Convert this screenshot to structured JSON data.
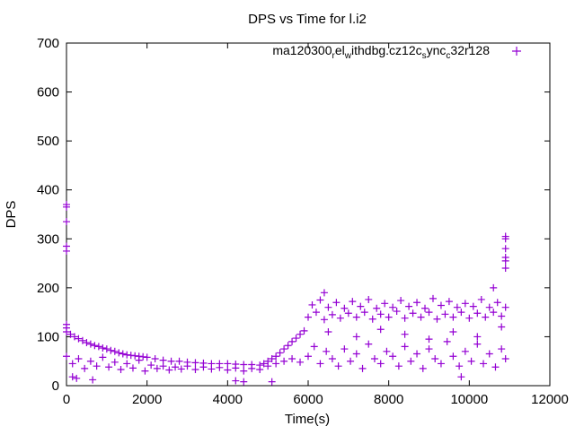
{
  "chart_data": {
    "type": "scatter",
    "title": "DPS vs Time for l.i2",
    "xlabel": "Time(s)",
    "ylabel": "DPS",
    "xlim": [
      0,
      12000
    ],
    "ylim": [
      0,
      700
    ],
    "xticks": [
      "0",
      "2000",
      "4000",
      "6000",
      "8000",
      "10000",
      "12000"
    ],
    "yticks": [
      "0",
      "100",
      "200",
      "300",
      "400",
      "500",
      "600",
      "700"
    ],
    "xtick_values": [
      0,
      2000,
      4000,
      6000,
      8000,
      10000,
      12000
    ],
    "ytick_values": [
      0,
      100,
      200,
      300,
      400,
      500,
      600,
      700
    ],
    "grid": false,
    "legend_position": "top-right",
    "series": [
      {
        "name": "ma120300_rel_withdbg.cz12c_sync_c32r128",
        "legend_parts": [
          "ma120300",
          "r",
          "el",
          "w",
          "ithdbg.cz12c",
          "s",
          "ync",
          "c",
          "32r128"
        ],
        "color": "#9400d3",
        "marker": "plus",
        "points": [
          [
            0,
            370
          ],
          [
            0,
            365
          ],
          [
            0,
            335
          ],
          [
            0,
            285
          ],
          [
            0,
            275
          ],
          [
            0,
            125
          ],
          [
            0,
            118
          ],
          [
            0,
            110
          ],
          [
            100,
            105
          ],
          [
            200,
            100
          ],
          [
            300,
            96
          ],
          [
            400,
            92
          ],
          [
            500,
            88
          ],
          [
            600,
            85
          ],
          [
            700,
            82
          ],
          [
            800,
            80
          ],
          [
            900,
            77
          ],
          [
            1000,
            75
          ],
          [
            1100,
            72
          ],
          [
            1200,
            70
          ],
          [
            1300,
            67
          ],
          [
            1400,
            65
          ],
          [
            1500,
            63
          ],
          [
            1600,
            62
          ],
          [
            1700,
            61
          ],
          [
            1800,
            60
          ],
          [
            1900,
            59
          ],
          [
            2000,
            58
          ],
          [
            2200,
            55
          ],
          [
            2400,
            52
          ],
          [
            2600,
            50
          ],
          [
            2800,
            50
          ],
          [
            3000,
            48
          ],
          [
            3200,
            47
          ],
          [
            3400,
            46
          ],
          [
            3600,
            45
          ],
          [
            3800,
            45
          ],
          [
            4000,
            45
          ],
          [
            4200,
            44
          ],
          [
            4400,
            43
          ],
          [
            4600,
            43
          ],
          [
            4800,
            42
          ],
          [
            4900,
            45
          ],
          [
            5000,
            50
          ],
          [
            5100,
            55
          ],
          [
            5200,
            60
          ],
          [
            5300,
            67
          ],
          [
            5400,
            75
          ],
          [
            5500,
            82
          ],
          [
            5600,
            90
          ],
          [
            5700,
            97
          ],
          [
            5800,
            105
          ],
          [
            5900,
            112
          ],
          [
            0,
            60
          ],
          [
            150,
            45
          ],
          [
            300,
            55
          ],
          [
            450,
            35
          ],
          [
            600,
            50
          ],
          [
            750,
            40
          ],
          [
            900,
            58
          ],
          [
            1050,
            38
          ],
          [
            1200,
            48
          ],
          [
            1350,
            33
          ],
          [
            1500,
            45
          ],
          [
            1650,
            36
          ],
          [
            1800,
            52
          ],
          [
            1950,
            30
          ],
          [
            2100,
            42
          ],
          [
            2250,
            35
          ],
          [
            2400,
            40
          ],
          [
            2550,
            32
          ],
          [
            2700,
            38
          ],
          [
            2850,
            34
          ],
          [
            3000,
            40
          ],
          [
            3200,
            33
          ],
          [
            3400,
            38
          ],
          [
            3600,
            34
          ],
          [
            3800,
            37
          ],
          [
            4000,
            32
          ],
          [
            4200,
            36
          ],
          [
            4400,
            30
          ],
          [
            4600,
            35
          ],
          [
            4800,
            33
          ],
          [
            5000,
            40
          ],
          [
            5200,
            45
          ],
          [
            5400,
            50
          ],
          [
            5600,
            55
          ],
          [
            5800,
            48
          ],
          [
            6000,
            140
          ],
          [
            6100,
            165
          ],
          [
            6200,
            150
          ],
          [
            6300,
            175
          ],
          [
            6400,
            135
          ],
          [
            6500,
            160
          ],
          [
            6600,
            145
          ],
          [
            6700,
            170
          ],
          [
            6800,
            138
          ],
          [
            6900,
            158
          ],
          [
            7000,
            148
          ],
          [
            7100,
            172
          ],
          [
            7200,
            140
          ],
          [
            7300,
            162
          ],
          [
            7400,
            150
          ],
          [
            7500,
            176
          ],
          [
            7600,
            136
          ],
          [
            7700,
            158
          ],
          [
            7800,
            146
          ],
          [
            7900,
            168
          ],
          [
            8000,
            140
          ],
          [
            8100,
            160
          ],
          [
            8200,
            152
          ],
          [
            8300,
            174
          ],
          [
            8400,
            138
          ],
          [
            8500,
            162
          ],
          [
            8600,
            148
          ],
          [
            8700,
            170
          ],
          [
            8800,
            140
          ],
          [
            8900,
            158
          ],
          [
            9000,
            150
          ],
          [
            9100,
            178
          ],
          [
            9200,
            136
          ],
          [
            9300,
            164
          ],
          [
            9400,
            146
          ],
          [
            9500,
            172
          ],
          [
            9600,
            140
          ],
          [
            9700,
            160
          ],
          [
            9800,
            150
          ],
          [
            9900,
            168
          ],
          [
            10000,
            138
          ],
          [
            10100,
            162
          ],
          [
            10200,
            148
          ],
          [
            10300,
            176
          ],
          [
            10400,
            140
          ],
          [
            10500,
            160
          ],
          [
            10600,
            150
          ],
          [
            10700,
            170
          ],
          [
            10800,
            142
          ],
          [
            10900,
            160
          ],
          [
            6000,
            60
          ],
          [
            6150,
            80
          ],
          [
            6300,
            45
          ],
          [
            6450,
            70
          ],
          [
            6600,
            55
          ],
          [
            6750,
            40
          ],
          [
            6900,
            75
          ],
          [
            7050,
            50
          ],
          [
            7200,
            65
          ],
          [
            7350,
            35
          ],
          [
            7500,
            85
          ],
          [
            7650,
            55
          ],
          [
            7800,
            45
          ],
          [
            7950,
            70
          ],
          [
            8100,
            60
          ],
          [
            8250,
            40
          ],
          [
            8400,
            80
          ],
          [
            8550,
            50
          ],
          [
            8700,
            65
          ],
          [
            8850,
            35
          ],
          [
            9000,
            75
          ],
          [
            9150,
            55
          ],
          [
            9300,
            45
          ],
          [
            9450,
            90
          ],
          [
            9600,
            60
          ],
          [
            9750,
            40
          ],
          [
            9900,
            70
          ],
          [
            10050,
            50
          ],
          [
            10200,
            85
          ],
          [
            10350,
            45
          ],
          [
            10500,
            65
          ],
          [
            10650,
            38
          ],
          [
            10800,
            75
          ],
          [
            10900,
            55
          ],
          [
            6500,
            110
          ],
          [
            7200,
            100
          ],
          [
            7800,
            115
          ],
          [
            8400,
            105
          ],
          [
            9000,
            95
          ],
          [
            9600,
            110
          ],
          [
            10200,
            100
          ],
          [
            10800,
            120
          ],
          [
            150,
            18
          ],
          [
            250,
            15
          ],
          [
            650,
            12
          ],
          [
            4200,
            10
          ],
          [
            4400,
            8
          ],
          [
            5100,
            8
          ],
          [
            9800,
            18
          ],
          [
            6400,
            190
          ],
          [
            10600,
            200
          ],
          [
            10900,
            305
          ],
          [
            10900,
            300
          ],
          [
            10900,
            280
          ],
          [
            10900,
            262
          ],
          [
            10900,
            255
          ],
          [
            10900,
            240
          ]
        ]
      }
    ]
  }
}
